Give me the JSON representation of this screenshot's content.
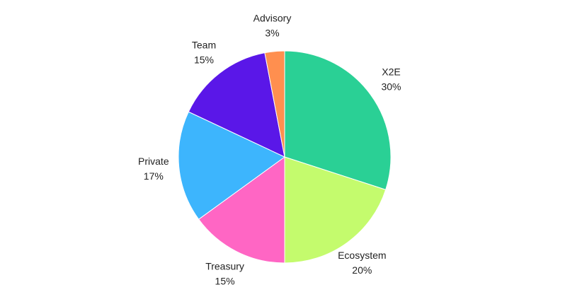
{
  "chart_data": {
    "type": "pie",
    "categories": [
      "X2E",
      "Ecosystem",
      "Treasury",
      "Private",
      "Team",
      "Advisory"
    ],
    "values": [
      30,
      20,
      15,
      17,
      15,
      3
    ],
    "value_labels": [
      "30%",
      "20%",
      "15%",
      "17%",
      "15%",
      "3%"
    ],
    "colors": [
      "#2ad095",
      "#c4fb6d",
      "#ff66c4",
      "#3db5fd",
      "#5a17e8",
      "#ff8f4f"
    ]
  }
}
